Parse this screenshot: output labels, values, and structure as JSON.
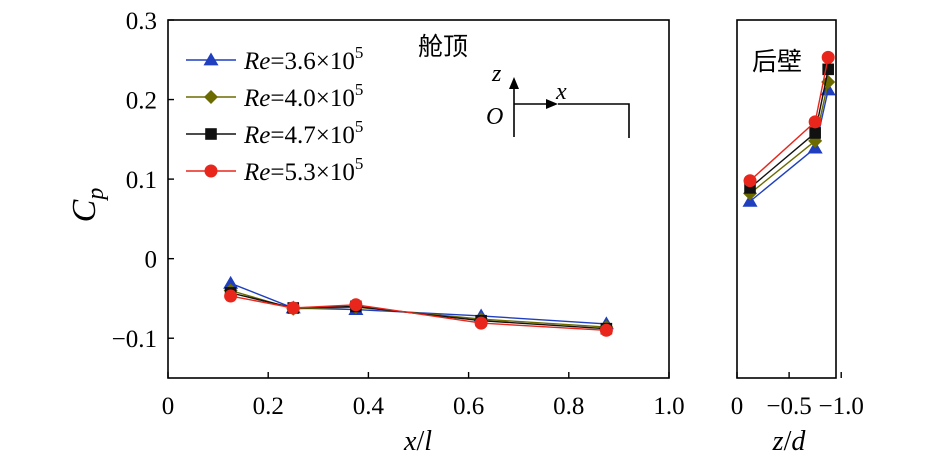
{
  "chart_data": [
    {
      "type": "line",
      "panel_label": "舱顶",
      "xlabel": {
        "var": "x",
        "sep": "/",
        "ref": "l"
      },
      "ylabel": {
        "main": "C",
        "sub": "p"
      },
      "xlim": [
        0,
        1.0
      ],
      "ylim": [
        -0.15,
        0.3
      ],
      "xticks": [
        0,
        0.2,
        0.4,
        0.6,
        0.8,
        1.0
      ],
      "xtick_labels": [
        "0",
        "0.2",
        "0.4",
        "0.6",
        "0.8",
        "1.0"
      ],
      "yticks": [
        -0.1,
        0,
        0.1,
        0.2,
        0.3
      ],
      "ytick_labels": [
        "−0.1",
        "0",
        "0.1",
        "0.2",
        "0.3"
      ],
      "x": [
        0.125,
        0.25,
        0.375,
        0.625,
        0.875
      ],
      "series": [
        {
          "name": "Re=3.6×10^5",
          "label": {
            "var": "Re",
            "rest": "=3.6×10",
            "exp": "5"
          },
          "color": "#1f3fbf",
          "marker": "triangle",
          "values": [
            -0.031,
            -0.062,
            -0.064,
            -0.072,
            -0.082
          ]
        },
        {
          "name": "Re=4.0×10^5",
          "label": {
            "var": "Re",
            "rest": "=4.0×10",
            "exp": "5"
          },
          "color": "#6b6b00",
          "marker": "diamond",
          "values": [
            -0.04,
            -0.063,
            -0.061,
            -0.076,
            -0.086
          ]
        },
        {
          "name": "Re=4.7×10^5",
          "label": {
            "var": "Re",
            "rest": "=4.7×10",
            "exp": "5"
          },
          "color": "#111111",
          "marker": "square",
          "values": [
            -0.043,
            -0.062,
            -0.06,
            -0.078,
            -0.088
          ]
        },
        {
          "name": "Re=5.3×10^5",
          "label": {
            "var": "Re",
            "rest": "=5.3×10",
            "exp": "5"
          },
          "color": "#e8261c",
          "marker": "circle",
          "values": [
            -0.047,
            -0.062,
            -0.058,
            -0.081,
            -0.09
          ]
        }
      ],
      "legend": "top-left",
      "inset": {
        "z_label": "z",
        "x_label": "x",
        "origin_label": "O"
      }
    },
    {
      "type": "line",
      "panel_label": "后壁",
      "xlabel": {
        "var": "z",
        "sep": "/",
        "ref": "d"
      },
      "xlim": [
        0,
        -0.95
      ],
      "ylim": [
        -0.15,
        0.3
      ],
      "xticks": [
        0,
        -0.5,
        -1.0
      ],
      "xtick_labels": [
        "0",
        "−0.5",
        "−1.0"
      ],
      "x": [
        -0.125,
        -0.75,
        -0.875
      ],
      "series": [
        {
          "name": "Re=3.6×10^5",
          "color": "#1f3fbf",
          "marker": "triangle",
          "values": [
            0.072,
            0.139,
            0.212
          ]
        },
        {
          "name": "Re=4.0×10^5",
          "color": "#6b6b00",
          "marker": "diamond",
          "values": [
            0.082,
            0.148,
            0.222
          ]
        },
        {
          "name": "Re=4.7×10^5",
          "color": "#111111",
          "marker": "square",
          "values": [
            0.089,
            0.158,
            0.238
          ]
        },
        {
          "name": "Re=5.3×10^5",
          "color": "#e8261c",
          "marker": "circle",
          "values": [
            0.098,
            0.172,
            0.253
          ]
        }
      ]
    }
  ]
}
